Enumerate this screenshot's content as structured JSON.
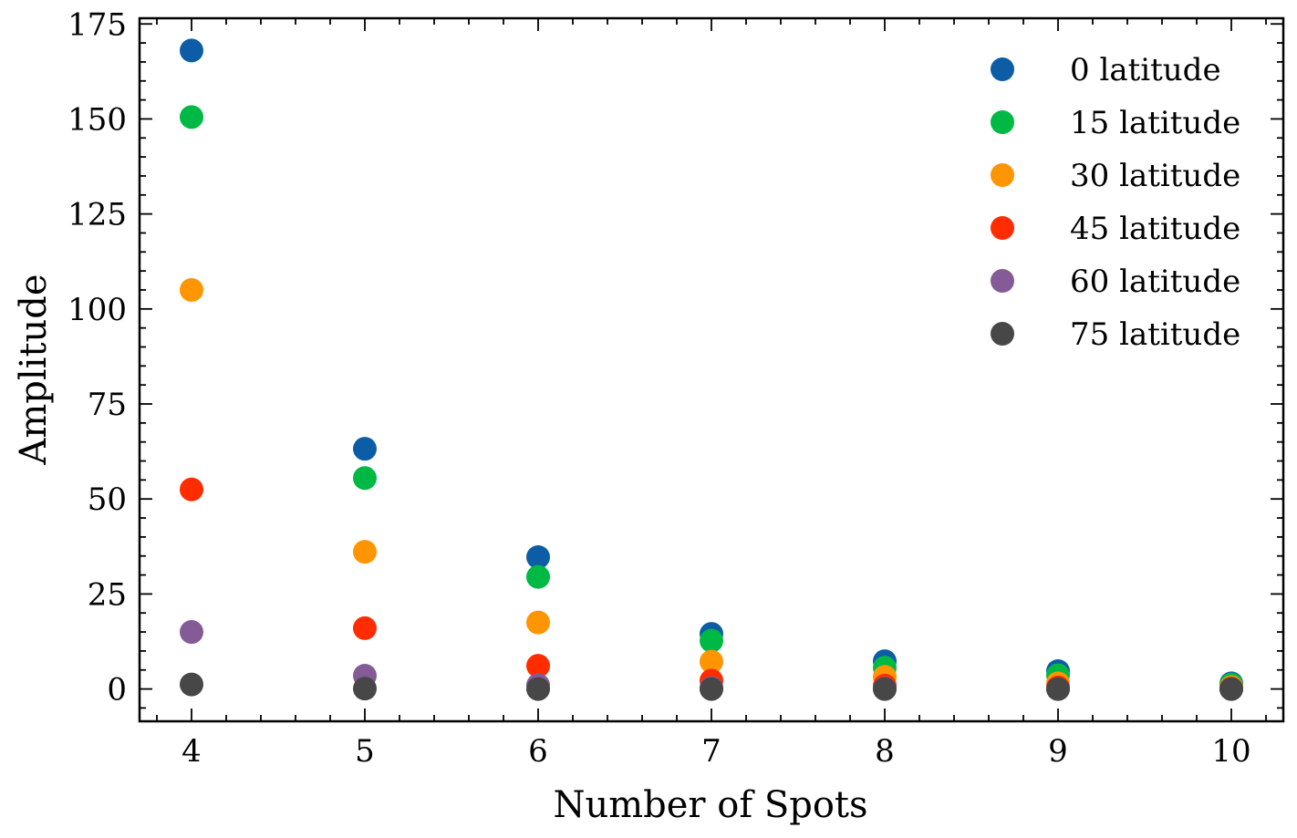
{
  "chart_data": {
    "type": "scatter",
    "title": "",
    "xlabel": "Number of Spots",
    "ylabel": "Amplitude",
    "xlim": [
      3.7,
      10.3
    ],
    "ylim": [
      -8.5,
      176.5
    ],
    "xticks": [
      4,
      5,
      6,
      7,
      8,
      9,
      10
    ],
    "xtick_labels": [
      "4",
      "5",
      "6",
      "7",
      "8",
      "9",
      "10"
    ],
    "yticks": [
      0,
      25,
      50,
      75,
      100,
      125,
      150,
      175
    ],
    "ytick_labels": [
      "0",
      "25",
      "50",
      "75",
      "100",
      "125",
      "150",
      "175"
    ],
    "x_minor_step": 0.2,
    "y_minor_step": 5,
    "grid": false,
    "legend_position": "top-right",
    "x": [
      4,
      5,
      6,
      7,
      8,
      9,
      10
    ],
    "series": [
      {
        "name": "0 latitude",
        "color": "#0C5DA5",
        "values": [
          168,
          63.2,
          34.7,
          14.5,
          7.3,
          4.7,
          1.5
        ]
      },
      {
        "name": "15 latitude",
        "color": "#00B945",
        "values": [
          150.5,
          55.5,
          29.5,
          12.7,
          5.6,
          3.6,
          1.2
        ]
      },
      {
        "name": "30 latitude",
        "color": "#FF9500",
        "values": [
          105,
          36.1,
          17.5,
          7.2,
          3.2,
          1.5,
          0.5
        ]
      },
      {
        "name": "45 latitude",
        "color": "#FF2C00",
        "values": [
          52.5,
          16,
          6.1,
          2.2,
          0.9,
          0.4,
          0.1
        ]
      },
      {
        "name": "60 latitude",
        "color": "#845B97",
        "values": [
          15,
          3.5,
          1,
          0.3,
          0.1,
          0,
          0
        ]
      },
      {
        "name": "75 latitude",
        "color": "#474747",
        "values": [
          1.2,
          0.1,
          0,
          0,
          0,
          0,
          0
        ]
      }
    ]
  }
}
